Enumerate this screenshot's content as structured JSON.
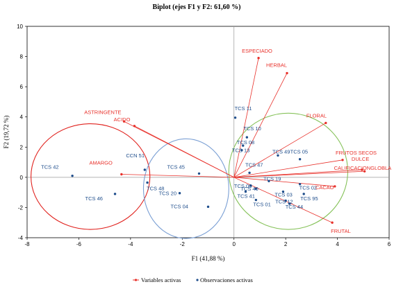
{
  "chart_data": {
    "type": "scatter",
    "title": "Biplot (ejes F1 y F2: 61,60 %)",
    "xlabel": "F1 (41,88 %)",
    "ylabel": "F2 (19,72 %)",
    "xlim": [
      -8,
      6
    ],
    "ylim": [
      -4,
      10
    ],
    "xticks": [
      -8,
      -6,
      -4,
      -2,
      0,
      2,
      4,
      6
    ],
    "yticks": [
      -4,
      -2,
      0,
      2,
      4,
      6,
      8,
      10
    ],
    "grid": false,
    "legend_position": "bottom",
    "colors": {
      "variables": "#e8302a",
      "observations": "#1f4e8c",
      "ellipse_red": "#e0201c",
      "ellipse_blue": "#7a9fd4",
      "ellipse_green": "#86c25a"
    },
    "series": [
      {
        "name": "Variables activas",
        "kind": "vectors",
        "points": [
          {
            "label": "ESPECIADO",
            "x": 0.95,
            "y": 7.9
          },
          {
            "label": "HERBAL",
            "x": 2.05,
            "y": 6.9
          },
          {
            "label": "FLORAL",
            "x": 3.55,
            "y": 3.6
          },
          {
            "label": "FRUTOS SECOS",
            "x": 4.2,
            "y": 1.15
          },
          {
            "label": "DULCE",
            "x": 4.95,
            "y": 0.5
          },
          {
            "label": "CALIFICACIONGLOBLA",
            "x": 5.05,
            "y": 0.4
          },
          {
            "label": "CACAO",
            "x": 3.9,
            "y": -0.6
          },
          {
            "label": "FRUTAL",
            "x": 3.8,
            "y": -3.0
          },
          {
            "label": "ASTRINGENTE",
            "x": -4.25,
            "y": 3.7
          },
          {
            "label": "ACIDO",
            "x": -3.85,
            "y": 3.4
          },
          {
            "label": "AMARGO",
            "x": -4.35,
            "y": 0.2
          }
        ]
      },
      {
        "name": "Observaciones activas",
        "kind": "points",
        "points": [
          {
            "label": "TCS 11",
            "x": 0.05,
            "y": 3.95
          },
          {
            "label": "TCS 10",
            "x": 0.5,
            "y": 2.65
          },
          {
            "label": "TCS 08",
            "x": 0.35,
            "y": 2.1
          },
          {
            "label": "TCS 13",
            "x": 0.3,
            "y": 1.8
          },
          {
            "label": "TCS 49",
            "x": 1.7,
            "y": 1.45
          },
          {
            "label": "TCS 05",
            "x": 2.55,
            "y": 1.2
          },
          {
            "label": "TCS 47",
            "x": 0.6,
            "y": 0.3
          },
          {
            "label": "TCS 19",
            "x": 1.35,
            "y": -0.25
          },
          {
            "label": "TCS 06",
            "x": 0.65,
            "y": -0.55
          },
          {
            "label": "TCS 40",
            "x": 0.85,
            "y": -0.75
          },
          {
            "label": "TCS 41",
            "x": 0.45,
            "y": -0.95
          },
          {
            "label": "TCS 01",
            "x": 0.85,
            "y": -1.5
          },
          {
            "label": "TCS 02",
            "x": 2.55,
            "y": -0.45
          },
          {
            "label": "TCS 03",
            "x": 1.9,
            "y": -0.95
          },
          {
            "label": "TCS 95",
            "x": 2.7,
            "y": -1.1
          },
          {
            "label": "TCS 12",
            "x": 2.0,
            "y": -1.55
          },
          {
            "label": "TCS 44",
            "x": 2.15,
            "y": -1.75
          },
          {
            "label": "TCS 45",
            "x": -1.35,
            "y": 0.25
          },
          {
            "label": "TCS 20",
            "x": -2.1,
            "y": -1.05
          },
          {
            "label": "TCS 48",
            "x": -3.35,
            "y": -0.35
          },
          {
            "label": "TCS 04",
            "x": -1.0,
            "y": -1.95
          },
          {
            "label": "CCN 51",
            "x": -3.45,
            "y": 0.5
          },
          {
            "label": "TCS 42",
            "x": -6.25,
            "y": 0.1
          },
          {
            "label": "TCS 46",
            "x": -4.6,
            "y": -1.1
          }
        ]
      }
    ],
    "ellipses": [
      {
        "cx": -5.55,
        "cy": 0.05,
        "rx": 2.3,
        "ry": 3.5,
        "color_key": "ellipse_red"
      },
      {
        "cx": -1.85,
        "cy": -0.75,
        "rx": 1.65,
        "ry": 3.3,
        "color_key": "ellipse_blue"
      },
      {
        "cx": 2.1,
        "cy": 0.4,
        "rx": 2.3,
        "ry": 3.85,
        "color_key": "ellipse_green"
      }
    ]
  }
}
